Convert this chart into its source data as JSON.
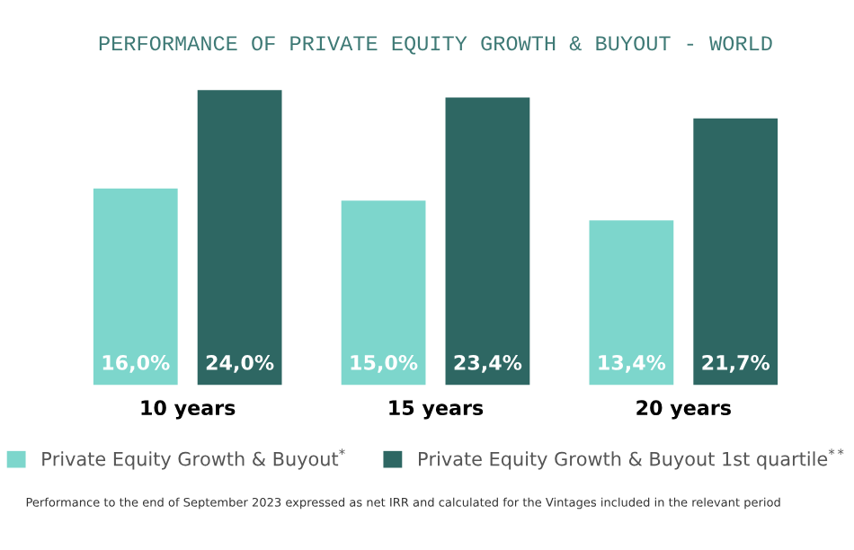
{
  "chart_data": {
    "type": "bar",
    "title": "PERFORMANCE OF PRIVATE EQUITY GROWTH & BUYOUT - WORLD",
    "categories": [
      "10 years",
      "15 years",
      "20 years"
    ],
    "series": [
      {
        "name": "Private Equity Growth & Buyout$^{*}$",
        "color": "#7dd6cc",
        "values": [
          16.0,
          15.0,
          13.4
        ],
        "value_labels": [
          "16,0%",
          "15,0%",
          "13,4%"
        ]
      },
      {
        "name": "Private Equity Growth & Buyout 1st quartile$^{**}$",
        "color": "#2e6763",
        "values": [
          24.0,
          23.4,
          21.7
        ],
        "value_labels": [
          "24,0%",
          "23,4%",
          "21,7%"
        ]
      }
    ],
    "ylim": [
      0,
      24.4
    ],
    "tick_labels": "x",
    "grid": false,
    "legend": "bottom",
    "annotations": [
      "Performance to the end of September 2023 expressed as net IRR and calculated for the Vintages included in the relevant period"
    ]
  }
}
